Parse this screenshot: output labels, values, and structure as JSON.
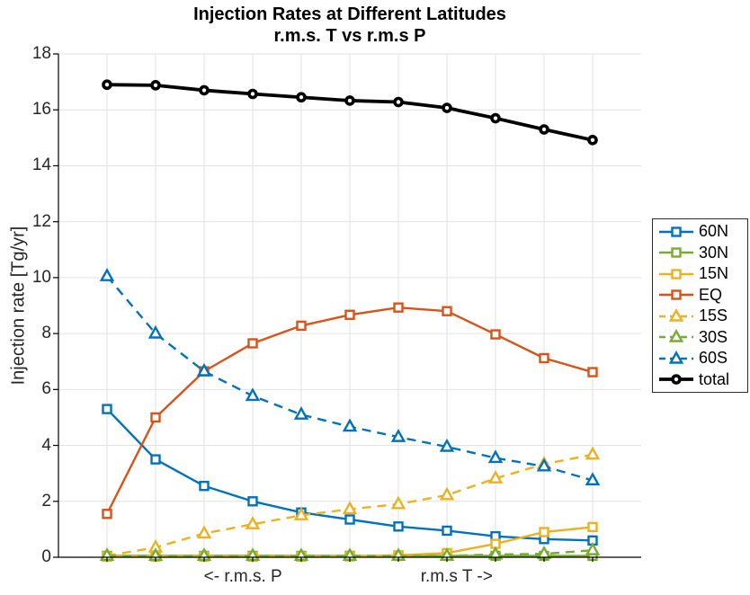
{
  "chart_data": {
    "type": "line",
    "title": "Injection Rates at Different Latitudes",
    "subtitle": "r.m.s. T vs r.m.s P",
    "ylabel": "Injection rate [Tg/yr]",
    "x": [
      1,
      2,
      3,
      4,
      5,
      6,
      7,
      8,
      9,
      10,
      11
    ],
    "xlim": [
      0,
      12
    ],
    "ylim": [
      0,
      18
    ],
    "yticks": [
      0,
      2,
      4,
      6,
      8,
      10,
      12,
      14,
      16,
      18
    ],
    "xgridlines": [
      1,
      2,
      3,
      4,
      5,
      6,
      7,
      8,
      9,
      10,
      11
    ],
    "grid": true,
    "legend_position": "right-outside",
    "xtick_labels": [
      {
        "pos": 3.8,
        "label": "<- r.m.s. P"
      },
      {
        "pos": 8.2,
        "label": "r.m.s T ->"
      }
    ],
    "series": [
      {
        "name": "60N",
        "color": "#0072BD",
        "style": "solid",
        "marker": "square",
        "values": [
          5.3,
          3.5,
          2.55,
          2.0,
          1.6,
          1.35,
          1.1,
          0.95,
          0.75,
          0.65,
          0.6
        ]
      },
      {
        "name": "30N",
        "color": "#77AC30",
        "style": "solid",
        "marker": "square",
        "values": [
          0.05,
          0.05,
          0.05,
          0.05,
          0.05,
          0.05,
          0.05,
          0.05,
          0.05,
          0.05,
          0.05
        ]
      },
      {
        "name": "15N",
        "color": "#EDB120",
        "style": "solid",
        "marker": "square",
        "values": [
          0.02,
          0.02,
          0.02,
          0.02,
          0.02,
          0.03,
          0.07,
          0.15,
          0.48,
          0.9,
          1.08
        ]
      },
      {
        "name": "EQ",
        "color": "#D95319",
        "style": "solid",
        "marker": "square",
        "values": [
          1.55,
          5.0,
          6.65,
          7.65,
          8.28,
          8.67,
          8.93,
          8.8,
          7.97,
          7.12,
          6.62
        ]
      },
      {
        "name": "15S",
        "color": "#EDB120",
        "style": "dashed",
        "marker": "triangle",
        "values": [
          0.05,
          0.35,
          0.85,
          1.18,
          1.5,
          1.72,
          1.9,
          2.22,
          2.82,
          3.33,
          3.67
        ]
      },
      {
        "name": "30S",
        "color": "#77AC30",
        "style": "dashed",
        "marker": "triangle",
        "values": [
          0.05,
          0.05,
          0.05,
          0.05,
          0.05,
          0.05,
          0.05,
          0.05,
          0.1,
          0.12,
          0.25
        ]
      },
      {
        "name": "60S",
        "color": "#0072BD",
        "style": "dashed",
        "marker": "triangle",
        "values": [
          10.05,
          8.0,
          6.65,
          5.77,
          5.1,
          4.67,
          4.3,
          3.95,
          3.55,
          3.25,
          2.75
        ]
      },
      {
        "name": "total",
        "color": "#000000",
        "style": "solid",
        "marker": "circle",
        "values": [
          16.9,
          16.88,
          16.7,
          16.57,
          16.45,
          16.33,
          16.28,
          16.07,
          15.7,
          15.3,
          14.92
        ]
      }
    ]
  },
  "colors": {
    "grid": "#E2E2E2",
    "axis": "#000000",
    "tick_text": "#262626",
    "background": "#FFFFFF"
  }
}
